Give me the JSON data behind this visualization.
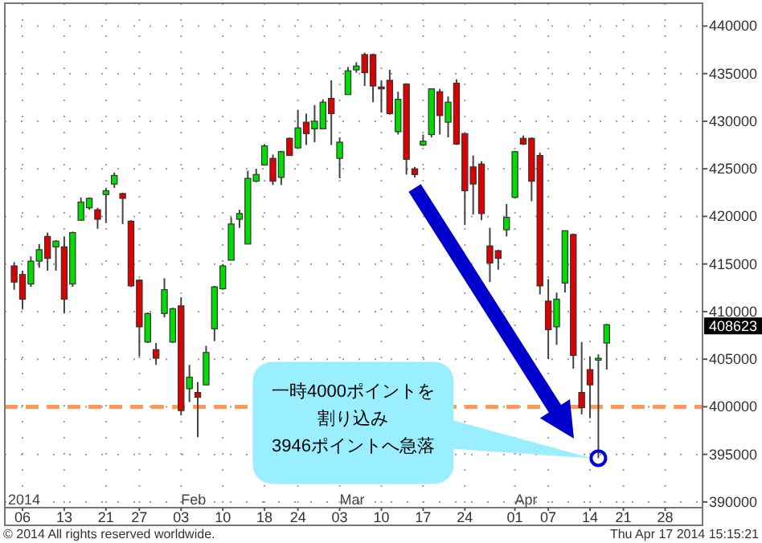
{
  "chart_data": {
    "type": "candlestick",
    "categories": [
      null,
      null,
      "06",
      null,
      null,
      null,
      null,
      "13",
      null,
      null,
      null,
      null,
      "21",
      null,
      null,
      null,
      "27",
      null,
      null,
      null,
      null,
      "03",
      null,
      null,
      null,
      null,
      "10",
      null,
      null,
      null,
      null,
      "18",
      null,
      null,
      null,
      "24",
      null,
      null,
      null,
      null,
      "03",
      null,
      null,
      null,
      null,
      "10",
      null,
      null,
      null,
      null,
      "17",
      null,
      null,
      null,
      null,
      "24",
      null,
      null,
      null,
      null,
      null,
      "01",
      null,
      null,
      null,
      "07",
      null,
      null,
      null,
      null,
      "14",
      null,
      null,
      null,
      "21",
      null,
      null,
      null,
      null,
      "28",
      null,
      null,
      null,
      null
    ],
    "ohlc": [
      null,
      [
        414800,
        415200,
        412300,
        413100
      ],
      [
        413900,
        414300,
        410300,
        411300
      ],
      [
        412900,
        415800,
        412600,
        415300
      ],
      [
        415300,
        417100,
        414600,
        416500
      ],
      [
        417900,
        418300,
        414300,
        415600
      ],
      [
        416800,
        417500,
        414300,
        417400
      ],
      [
        416800,
        417900,
        409800,
        411300
      ],
      [
        412900,
        418400,
        412600,
        418300
      ],
      [
        419600,
        422000,
        419600,
        421500
      ],
      [
        420900,
        422000,
        420700,
        421900
      ],
      [
        420700,
        420900,
        418700,
        419700
      ],
      [
        422300,
        423000,
        419300,
        422700
      ],
      [
        423400,
        424600,
        423000,
        424300
      ],
      [
        422400,
        422500,
        419200,
        421900
      ],
      [
        419500,
        419600,
        412600,
        412700
      ],
      [
        413300,
        413400,
        405300,
        408400
      ],
      [
        406800,
        409900,
        406700,
        409800
      ],
      [
        406000,
        406700,
        404400,
        405100
      ],
      [
        409800,
        413500,
        409400,
        412300
      ],
      [
        406800,
        410400,
        406700,
        410300
      ],
      [
        410600,
        411500,
        399100,
        399600
      ],
      [
        401900,
        404400,
        400500,
        403100
      ],
      [
        401500,
        402600,
        396800,
        401000
      ],
      [
        402300,
        406400,
        402300,
        405700
      ],
      [
        408200,
        412700,
        406900,
        412600
      ],
      [
        412400,
        415000,
        412300,
        414800
      ],
      [
        415400,
        419900,
        415400,
        419200
      ],
      [
        419700,
        420700,
        418800,
        420300
      ],
      [
        417100,
        424800,
        417100,
        424000
      ],
      [
        423700,
        425000,
        423600,
        424400
      ],
      [
        425400,
        427600,
        425400,
        427400
      ],
      [
        426100,
        426500,
        423300,
        423700
      ],
      [
        424100,
        426900,
        423300,
        426800
      ],
      [
        428200,
        428300,
        426400,
        426400
      ],
      [
        427200,
        431200,
        427200,
        429300
      ],
      [
        429900,
        430800,
        427500,
        428700
      ],
      [
        429200,
        431700,
        427800,
        430000
      ],
      [
        429200,
        432300,
        429200,
        432000
      ],
      [
        432400,
        434300,
        427500,
        430800
      ],
      [
        426100,
        428300,
        424000,
        427800
      ],
      [
        432800,
        435700,
        432800,
        435300
      ],
      [
        435400,
        436200,
        435100,
        435800
      ],
      [
        437000,
        437200,
        433700,
        435100
      ],
      [
        437000,
        437100,
        432000,
        433700
      ],
      [
        433600,
        434300,
        430900,
        433400
      ],
      [
        434300,
        435400,
        430700,
        430800
      ],
      [
        428900,
        433100,
        428600,
        432300
      ],
      [
        433900,
        434000,
        424400,
        426000
      ],
      [
        425000,
        425200,
        424100,
        424400
      ],
      [
        427500,
        428600,
        427400,
        427900
      ],
      [
        428600,
        433400,
        428300,
        433400
      ],
      [
        433100,
        433400,
        428600,
        430600
      ],
      [
        429900,
        432600,
        428300,
        432000
      ],
      [
        434000,
        434400,
        427500,
        427600
      ],
      [
        428700,
        428700,
        419100,
        422700
      ],
      [
        425200,
        426400,
        420200,
        423400
      ],
      [
        425500,
        425800,
        419600,
        420300
      ],
      [
        416900,
        418800,
        413100,
        415100
      ],
      [
        416400,
        416500,
        414400,
        415600
      ],
      [
        418600,
        421300,
        417900,
        419900
      ],
      [
        422000,
        426900,
        421900,
        426800
      ],
      [
        428200,
        428500,
        427500,
        427600
      ],
      [
        428200,
        428300,
        421600,
        423700
      ],
      [
        426400,
        426700,
        411800,
        412700
      ],
      [
        411100,
        413400,
        405000,
        408100
      ],
      [
        408400,
        412000,
        406500,
        411300
      ],
      [
        413000,
        418500,
        412000,
        418500
      ],
      [
        418100,
        418200,
        404000,
        405400
      ],
      [
        401500,
        406800,
        399200,
        399900
      ],
      [
        403900,
        405300,
        398800,
        402300
      ],
      [
        404900,
        405500,
        394600,
        405100
      ],
      [
        406700,
        408700,
        403900,
        408623
      ],
      null,
      null,
      null,
      null,
      null,
      null,
      null,
      null,
      null,
      null,
      null
    ],
    "colors": [
      null,
      "#dd0000",
      "#dd0000",
      "#00dd00",
      "#00dd00",
      "#dd0000",
      "#00dd00",
      "#dd0000",
      "#00dd00",
      "#00dd00",
      "#00dd00",
      "#dd0000",
      "#00dd00",
      "#00dd00",
      "#dd0000",
      "#dd0000",
      "#dd0000",
      "#00dd00",
      "#dd0000",
      "#00dd00",
      "#00dd00",
      "#dd0000",
      "#00dd00",
      "#dd0000",
      "#00dd00",
      "#00dd00",
      "#00dd00",
      "#00dd00",
      "#00dd00",
      "#00dd00",
      "#00dd00",
      "#00dd00",
      "#dd0000",
      "#00dd00",
      "#dd0000",
      "#00dd00",
      "#dd0000",
      "#00dd00",
      "#00dd00",
      "#dd0000",
      "#00dd00",
      "#00dd00",
      "#00dd00",
      "#dd0000",
      "#dd0000",
      "#dd0000",
      "#dd0000",
      "#00dd00",
      "#dd0000",
      "#dd0000",
      "#00dd00",
      "#00dd00",
      "#dd0000",
      "#00dd00",
      "#dd0000",
      "#dd0000",
      "#dd0000",
      "#dd0000",
      "#dd0000",
      "#dd0000",
      "#00dd00",
      "#00dd00",
      "#dd0000",
      "#dd0000",
      "#dd0000",
      "#dd0000",
      "#00dd00",
      "#00dd00",
      "#dd0000",
      "#dd0000",
      "#dd0000",
      "#00dd00",
      "#00dd00",
      null,
      null,
      null,
      null,
      null,
      null,
      null,
      null,
      null,
      null,
      null
    ],
    "ylim": [
      389400,
      442400
    ],
    "yticks": [
      390000,
      395000,
      400000,
      405000,
      410000,
      415000,
      420000,
      425000,
      430000,
      435000,
      440000
    ],
    "grid": true,
    "ref_lines": [
      {
        "axis": "y",
        "value": 400000,
        "color": "#ff9955",
        "line_style": "dashed"
      }
    ],
    "annotations": [
      "一時4000ポイントを",
      "割り込み",
      "3946ポイントへ急落",
      "408623",
      "2014",
      "Feb",
      "Mar",
      "Apr",
      "© 2014 All rights reserved worldwide.",
      "Thu Apr 17 2014 15:15:21"
    ]
  }
}
